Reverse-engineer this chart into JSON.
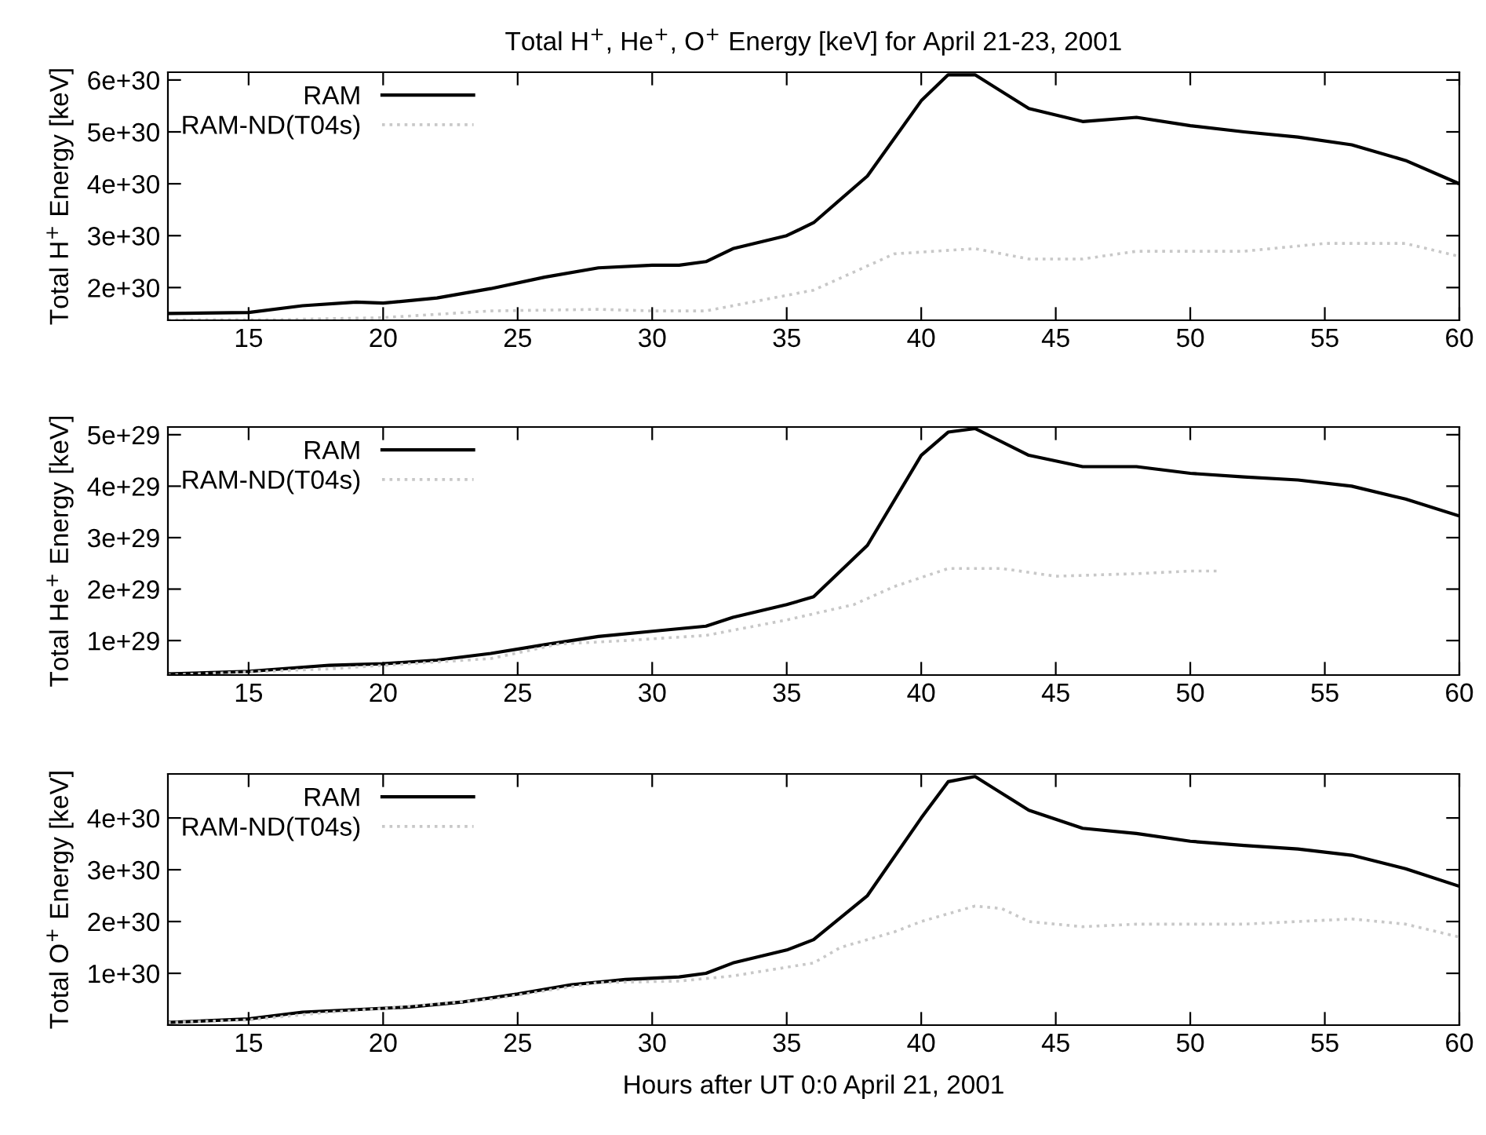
{
  "chart_data": [
    {
      "type": "line",
      "title": "Total H$^{+}$, He$^{+}$, O$^{+}$ Energy [keV] for April 21-23, 2001",
      "ylabel": "Total H$^{+}$ Energy [keV]",
      "xlim": [
        12,
        60
      ],
      "xticks": [
        15,
        20,
        25,
        30,
        35,
        40,
        45,
        50,
        55,
        60
      ],
      "ylim": [
        1.37e+30,
        6.15e+30
      ],
      "yticks": [
        2e+30,
        3e+30,
        4e+30,
        5e+30,
        6e+30
      ],
      "legend": "top left",
      "grid": false,
      "series": [
        {
          "name": "RAM",
          "color": "#000000",
          "line_style": "solid",
          "x": [
            12,
            15,
            17,
            19,
            20,
            22,
            24,
            26,
            28,
            30,
            31,
            32,
            33,
            35,
            36,
            38,
            40,
            41,
            42,
            44,
            46,
            48,
            50,
            52,
            54,
            56,
            58,
            60
          ],
          "values": [
            1.5e+30,
            1.52e+30,
            1.65e+30,
            1.72e+30,
            1.7e+30,
            1.8e+30,
            1.98e+30,
            2.2e+30,
            2.38e+30,
            2.43e+30,
            2.43e+30,
            2.5e+30,
            2.75e+30,
            3e+30,
            3.25e+30,
            4.15e+30,
            5.6e+30,
            6.1e+30,
            6.1e+30,
            5.45e+30,
            5.2e+30,
            5.28e+30,
            5.12e+30,
            5e+30,
            4.9e+30,
            4.75e+30,
            4.45e+30,
            4e+30
          ]
        },
        {
          "name": "RAM-ND(T04s)",
          "color": "#c8c8c8",
          "line_style": "dotted",
          "x": [
            12,
            16,
            20,
            24,
            28,
            30,
            32,
            35,
            36,
            39,
            42,
            44,
            46,
            48,
            52,
            55,
            58,
            60
          ],
          "values": [
            1.38e+30,
            1.38e+30,
            1.42e+30,
            1.55e+30,
            1.58e+30,
            1.55e+30,
            1.55e+30,
            1.85e+30,
            1.95e+30,
            2.65e+30,
            2.75e+30,
            2.55e+30,
            2.55e+30,
            2.7e+30,
            2.7e+30,
            2.85e+30,
            2.85e+30,
            2.6e+30
          ]
        }
      ]
    },
    {
      "type": "line",
      "ylabel": "Total He$^{+}$ Energy [keV]",
      "xlim": [
        12,
        60
      ],
      "xticks": [
        15,
        20,
        25,
        30,
        35,
        40,
        45,
        50,
        55,
        60
      ],
      "ylim": [
        3.3e+28,
        5.15e+29
      ],
      "yticks": [
        1e+29,
        2e+29,
        3e+29,
        4e+29,
        5e+29
      ],
      "legend": "top left",
      "grid": false,
      "series": [
        {
          "name": "RAM",
          "color": "#000000",
          "line_style": "solid",
          "x": [
            12,
            15,
            18,
            20,
            22,
            24,
            26,
            28,
            30,
            32,
            33,
            35,
            36,
            38,
            40,
            41,
            42,
            44,
            46,
            48,
            50,
            52,
            54,
            56,
            58,
            60
          ],
          "values": [
            3.5e+28,
            4e+28,
            5.2e+28,
            5.5e+28,
            6.2e+28,
            7.5e+28,
            9.2e+28,
            1.08e+29,
            1.18e+29,
            1.28e+29,
            1.45e+29,
            1.7e+29,
            1.85e+29,
            2.85e+29,
            4.6e+29,
            5.05e+29,
            5.12e+29,
            4.6e+29,
            4.38e+29,
            4.38e+29,
            4.25e+29,
            4.18e+29,
            4.12e+29,
            4e+29,
            3.75e+29,
            3.42e+29
          ]
        },
        {
          "name": "RAM-ND(T04s)",
          "color": "#c8c8c8",
          "line_style": "dotted",
          "x": [
            12,
            18,
            24,
            26.5,
            29,
            32,
            35,
            37.5,
            39,
            41,
            43,
            45,
            48,
            50,
            51
          ],
          "values": [
            3.3e+28,
            4.5e+28,
            6.5e+28,
            9.3e+28,
            1e+29,
            1.1e+29,
            1.4e+29,
            1.7e+29,
            2.05e+29,
            2.4e+29,
            2.4e+29,
            2.25e+29,
            2.3e+29,
            2.35e+29,
            2.35e+29
          ]
        }
      ]
    },
    {
      "type": "line",
      "ylabel": "Total O$^{+}$ Energy [keV]",
      "xlabel": "Hours after UT 0:0 April 21, 2001",
      "xlim": [
        12,
        60
      ],
      "xticks": [
        15,
        20,
        25,
        30,
        35,
        40,
        45,
        50,
        55,
        60
      ],
      "ylim": [
        0,
        4.85e+30
      ],
      "yticks": [
        1e+30,
        2e+30,
        3e+30,
        4e+30
      ],
      "legend": "top left",
      "grid": false,
      "series": [
        {
          "name": "RAM",
          "color": "#000000",
          "line_style": "solid",
          "x": [
            12,
            15,
            17,
            19,
            21,
            23,
            25,
            27,
            29,
            31,
            32,
            33,
            35,
            36,
            38,
            40,
            41,
            42,
            44,
            46,
            48,
            50,
            52,
            54,
            56,
            58,
            60
          ],
          "values": [
            5e+28,
            1.2e+29,
            2.5e+29,
            3e+29,
            3.5e+29,
            4.5e+29,
            6e+29,
            7.8e+29,
            8.8e+29,
            9.3e+29,
            1e+30,
            1.2e+30,
            1.45e+30,
            1.65e+30,
            2.5e+30,
            4e+30,
            4.7e+30,
            4.8e+30,
            4.15e+30,
            3.8e+30,
            3.7e+30,
            3.55e+30,
            3.47e+30,
            3.4e+30,
            3.28e+30,
            3.02e+30,
            2.68e+30
          ]
        },
        {
          "name": "RAM-ND(T04s)",
          "color": "#c8c8c8",
          "line_style": "dotted",
          "x": [
            12,
            15,
            18,
            20,
            24,
            28,
            31,
            33,
            36,
            37,
            39,
            40,
            42,
            43,
            44,
            46,
            48,
            50,
            52,
            54,
            56,
            58,
            60
          ],
          "values": [
            5e+28,
            1e+29,
            2.5e+29,
            3.2e+29,
            5e+29,
            8.2e+29,
            8.5e+29,
            9.5e+29,
            1.2e+30,
            1.5e+30,
            1.8e+30,
            2e+30,
            2.3e+30,
            2.25e+30,
            2e+30,
            1.9e+30,
            1.95e+30,
            1.95e+30,
            1.95e+30,
            2e+30,
            2.05e+30,
            1.95e+30,
            1.7e+30
          ]
        }
      ]
    }
  ]
}
